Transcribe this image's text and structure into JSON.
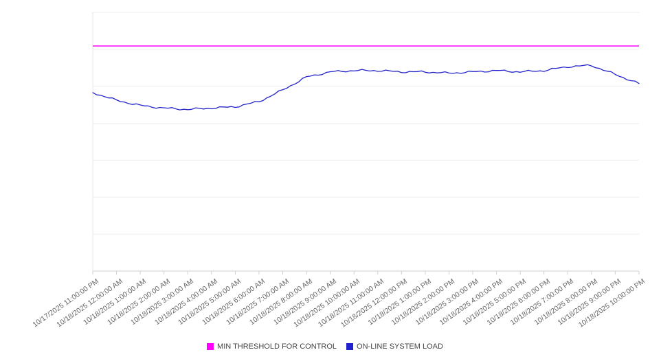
{
  "chart_data": {
    "type": "line",
    "title": "",
    "xlabel": "",
    "ylabel": "",
    "ylim": [
      0,
      100
    ],
    "grid": true,
    "y_axis_tick_labels_visible": false,
    "legend_position": "bottom",
    "x_labels": [
      "10/17/2025 11:00:00 PM",
      "10/18/2025 12:00:00 AM",
      "10/18/2025 1:00:00 AM",
      "10/18/2025 2:00:00 AM",
      "10/18/2025 3:00:00 AM",
      "10/18/2025 4:00:00 AM",
      "10/18/2025 5:00:00 AM",
      "10/18/2025 6:00:00 AM",
      "10/18/2025 7:00:00 AM",
      "10/18/2025 8:00:00 AM",
      "10/18/2025 9:00:00 AM",
      "10/18/2025 10:00:00 AM",
      "10/18/2025 11:00:00 AM",
      "10/18/2025 12:00:00 PM",
      "10/18/2025 1:00:00 PM",
      "10/18/2025 2:00:00 PM",
      "10/18/2025 3:00:00 PM",
      "10/18/2025 4:00:00 PM",
      "10/18/2025 5:00:00 PM",
      "10/18/2025 6:00:00 PM",
      "10/18/2025 7:00:00 PM",
      "10/18/2025 8:00:00 PM",
      "10/18/2025 9:00:00 PM",
      "10/18/2025 10:00:00 PM"
    ],
    "series": [
      {
        "name": "MIN THRESHOLD FOR CONTROL",
        "color": "#ff00ff",
        "style": "threshold-horizontal-line",
        "constant_value": 87
      },
      {
        "name": "ON-LINE SYSTEM LOAD",
        "color": "#2222cc",
        "style": "line",
        "values": [
          69,
          66,
          64,
          63,
          62.5,
          63,
          63.5,
          65.5,
          70,
          75,
          77,
          77.5,
          77.5,
          77,
          77,
          76.5,
          77,
          77.5,
          77,
          77.5,
          79,
          79.5,
          76,
          72.5
        ]
      }
    ]
  },
  "legend": {
    "items": [
      {
        "label": "MIN THRESHOLD FOR CONTROL",
        "color": "#ff00ff"
      },
      {
        "label": "ON-LINE SYSTEM LOAD",
        "color": "#2222cc"
      }
    ]
  }
}
